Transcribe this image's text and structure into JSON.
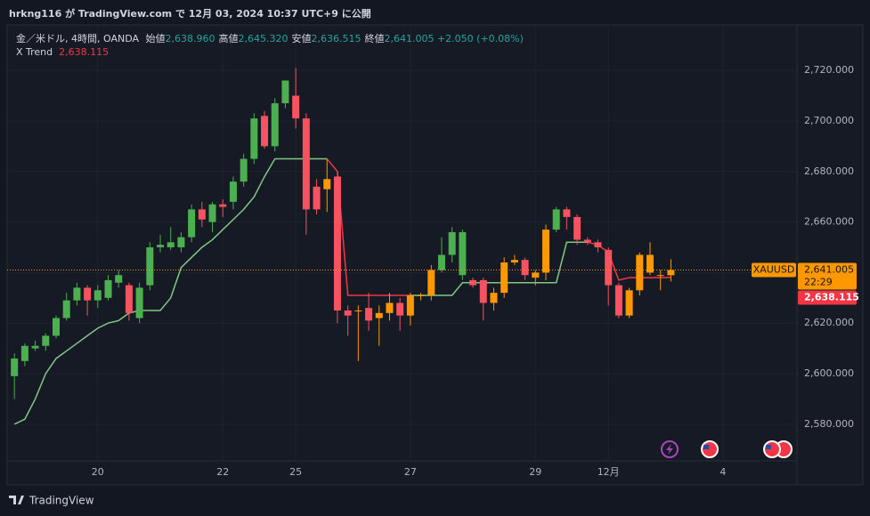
{
  "header": {
    "publish_line": "hrkng116 が TradingView.com で 12月 03, 2024 10:37 UTC+9 に公開",
    "brand": "TradingView"
  },
  "chart_data": {
    "type": "candlestick",
    "symbol_line": "金／米ドル, 4時間, OANDA",
    "ohlc_legend": [
      {
        "label": "始値",
        "value": "2,638.960"
      },
      {
        "label": "高値",
        "value": "2,645.320"
      },
      {
        "label": "安値",
        "value": "2,636.515"
      },
      {
        "label": "終値",
        "value": "2,641.005"
      }
    ],
    "change": "+2.050 (+0.08%)",
    "open": [
      2599,
      2605,
      2610,
      2611,
      2615,
      2622,
      2629,
      2634,
      2629,
      2630,
      2636,
      2635,
      2622,
      2635,
      2650,
      2650,
      2650,
      2654,
      2665,
      2660,
      2667,
      2668,
      2676,
      2685,
      2702,
      2690,
      2707,
      2710,
      2701,
      2674,
      2673,
      2678,
      2625,
      2625,
      2626,
      2622,
      2624,
      2628,
      2623,
      2631,
      2631,
      2641,
      2647,
      2656,
      2637,
      2637,
      2628,
      2632,
      2644,
      2645,
      2638,
      2640,
      2657,
      2665,
      2662,
      2653,
      2652,
      2649,
      2635,
      2623,
      2633,
      2647,
      2639,
      2638.96
    ],
    "high": [
      2608,
      2612,
      2613,
      2616,
      2623,
      2632,
      2636,
      2635,
      2635,
      2639,
      2641,
      2636,
      2636,
      2652,
      2655,
      2658,
      2656,
      2667,
      2668,
      2668,
      2669,
      2678,
      2687,
      2703,
      2704,
      2709,
      2716,
      2721,
      2703,
      2677,
      2685,
      2680,
      2627,
      2627,
      2632,
      2627,
      2632,
      2630,
      2632,
      2632,
      2643,
      2654,
      2658,
      2657,
      2638,
      2638,
      2634,
      2646,
      2647,
      2646,
      2641,
      2659,
      2666,
      2666,
      2663,
      2654,
      2653,
      2650,
      2636,
      2634,
      2648,
      2652,
      2641,
      2645.32
    ],
    "low": [
      2590,
      2603,
      2609,
      2609,
      2614,
      2621,
      2627,
      2623,
      2626,
      2629,
      2634,
      2621,
      2620,
      2633,
      2648,
      2649,
      2648,
      2652,
      2658,
      2656,
      2662,
      2665,
      2674,
      2683,
      2689,
      2688,
      2705,
      2697,
      2655,
      2663,
      2664,
      2620,
      2615,
      2605,
      2617,
      2611,
      2621,
      2617,
      2619,
      2629,
      2629,
      2640,
      2644,
      2637,
      2634,
      2621,
      2625,
      2630,
      2643,
      2637,
      2635,
      2637,
      2656,
      2657,
      2651,
      2651,
      2648,
      2627,
      2622,
      2622,
      2631,
      2639,
      2633,
      2636.515
    ],
    "close": [
      2606,
      2611,
      2611,
      2615,
      2622,
      2629,
      2634,
      2629,
      2633,
      2637,
      2639,
      2624,
      2634,
      2650,
      2651,
      2652,
      2654,
      2665,
      2661,
      2667,
      2666,
      2676,
      2685,
      2701,
      2690,
      2707,
      2716,
      2701,
      2665,
      2665,
      2677,
      2625,
      2623,
      2625,
      2621,
      2624,
      2628,
      2623,
      2631,
      2631,
      2641,
      2647,
      2656,
      2639,
      2635,
      2628,
      2632,
      2644,
      2645,
      2639,
      2640,
      2657,
      2665,
      2662,
      2653,
      2652,
      2650,
      2635,
      2623,
      2633,
      2647,
      2640,
      2639,
      2641.005
    ],
    "colors": [
      "#4caf50",
      "#4caf50",
      "#4caf50",
      "#4caf50",
      "#4caf50",
      "#4caf50",
      "#4caf50",
      "#f7525f",
      "#4caf50",
      "#4caf50",
      "#4caf50",
      "#f7525f",
      "#4caf50",
      "#4caf50",
      "#4caf50",
      "#4caf50",
      "#4caf50",
      "#4caf50",
      "#f7525f",
      "#4caf50",
      "#f7525f",
      "#4caf50",
      "#4caf50",
      "#4caf50",
      "#f7525f",
      "#4caf50",
      "#4caf50",
      "#f7525f",
      "#f7525f",
      "#f7525f",
      "#ff9800",
      "#f7525f",
      "#f7525f",
      "#ff9800",
      "#f7525f",
      "#ff9800",
      "#ff9800",
      "#f7525f",
      "#ff9800",
      "#ff9800",
      "#ff9800",
      "#4caf50",
      "#4caf50",
      "#4caf50",
      "#f7525f",
      "#f7525f",
      "#ff9800",
      "#ff9800",
      "#ff9800",
      "#f7525f",
      "#ff9800",
      "#ff9800",
      "#4caf50",
      "#f7525f",
      "#f7525f",
      "#f7525f",
      "#f7525f",
      "#f7525f",
      "#f7525f",
      "#ff9800",
      "#ff9800",
      "#ff9800",
      "#ff9800",
      "#ff9800"
    ],
    "trend": {
      "name": "X Trend",
      "value_label": "2,638.115",
      "values": [
        2580,
        2582,
        2590,
        2600,
        2606,
        2609,
        2612,
        2615,
        2618,
        2620,
        2621,
        2624,
        2625,
        2625,
        2625,
        2630,
        2642,
        2646,
        2650,
        2653,
        2657,
        2661,
        2665,
        2670,
        2678,
        2685,
        2685,
        2685,
        2685,
        2685,
        2685,
        2680,
        2631,
        2631,
        2631,
        2631,
        2631,
        2631,
        2631,
        2631,
        2631,
        2631,
        2631,
        2636,
        2636,
        2636,
        2636,
        2636,
        2636,
        2636,
        2636,
        2636,
        2636,
        2652,
        2652,
        2652,
        2651,
        2648,
        2637,
        2638,
        2638,
        2638,
        2638,
        2638.115
      ],
      "colors": [
        "#81c784",
        "#81c784",
        "#81c784",
        "#81c784",
        "#81c784",
        "#81c784",
        "#81c784",
        "#81c784",
        "#81c784",
        "#81c784",
        "#81c784",
        "#81c784",
        "#81c784",
        "#81c784",
        "#81c784",
        "#81c784",
        "#81c784",
        "#81c784",
        "#81c784",
        "#81c784",
        "#81c784",
        "#81c784",
        "#81c784",
        "#81c784",
        "#81c784",
        "#81c784",
        "#81c784",
        "#81c784",
        "#81c784",
        "#81c784",
        "#81c784",
        "#f23645",
        "#f23645",
        "#f23645",
        "#f23645",
        "#f23645",
        "#f23645",
        "#f23645",
        "#f23645",
        "#81c784",
        "#81c784",
        "#81c784",
        "#81c784",
        "#81c784",
        "#81c784",
        "#81c784",
        "#81c784",
        "#81c784",
        "#81c784",
        "#81c784",
        "#81c784",
        "#81c784",
        "#81c784",
        "#81c784",
        "#81c784",
        "#81c784",
        "#f23645",
        "#f23645",
        "#f23645",
        "#f23645",
        "#f23645",
        "#f23645",
        "#f23645",
        "#f23645"
      ]
    },
    "price_tag": {
      "symbol": "XAUUSD",
      "price": {
        "value": 2641.005,
        "label": "2,641.005"
      },
      "countdown": "22:29"
    },
    "trend_tag": {
      "value": 2638.115,
      "label": "2,638.115"
    },
    "xlim": [
      -0.7,
      75.1
    ],
    "xticks": [
      {
        "value": 8,
        "label": "20"
      },
      {
        "value": 20,
        "label": "22"
      },
      {
        "value": 27,
        "label": "25"
      },
      {
        "value": 38,
        "label": "27"
      },
      {
        "value": 50,
        "label": "29"
      },
      {
        "value": 57,
        "label": "12月"
      },
      {
        "value": 68,
        "label": "4"
      }
    ],
    "ylim": [
      2556,
      2738
    ],
    "yticks": [
      {
        "value": 2580,
        "label": "2,580.000"
      },
      {
        "value": 2600,
        "label": "2,600.000"
      },
      {
        "value": 2620,
        "label": "2,620.000"
      },
      {
        "value": 2640,
        "label": "2,640.000"
      },
      {
        "value": 2660,
        "label": "2,660.000"
      },
      {
        "value": 2680,
        "label": "2,680.000"
      },
      {
        "value": 2700,
        "label": "2,700.000"
      },
      {
        "value": 2720,
        "label": "2,720.000"
      }
    ],
    "grid": true
  }
}
